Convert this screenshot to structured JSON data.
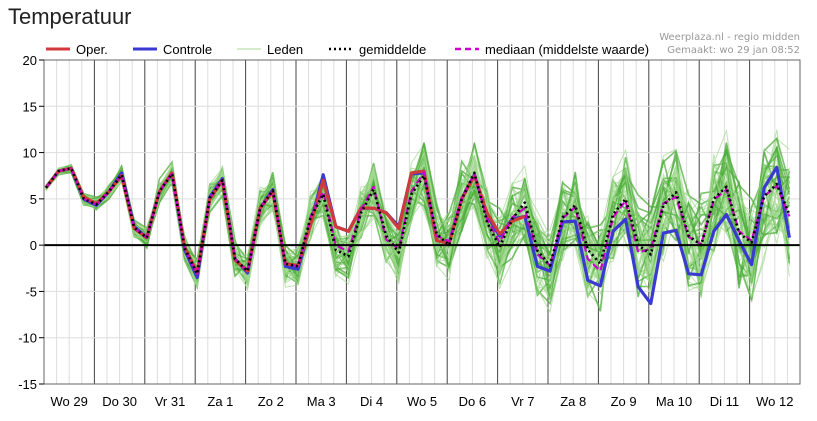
{
  "page": {
    "title": "Temperatuur"
  },
  "credits": {
    "line1": "Weerplaza.nl - regio midden",
    "line2": "Gemaakt: wo 29 jan 08:52"
  },
  "legend": [
    {
      "label": "Oper.",
      "color": "#d03a3a",
      "style": "solid-thick"
    },
    {
      "label": "Controle",
      "color": "#3a3ad0",
      "style": "solid-thick"
    },
    {
      "label": "Leden",
      "color": "#a8d898",
      "style": "solid-thin"
    },
    {
      "label": "gemiddelde",
      "color": "#000000",
      "style": "dotted"
    },
    {
      "label": "mediaan (middelste waarde)",
      "color": "#cc00cc",
      "style": "dashed"
    }
  ],
  "chart_data": {
    "type": "line",
    "ylim": [
      -15,
      20
    ],
    "yticks": [
      20,
      15,
      10,
      5,
      0,
      -5,
      -10,
      -15
    ],
    "grid": true,
    "legend_position": "top",
    "days": [
      "Wo 29",
      "Do 30",
      "Vr 31",
      "Za 1",
      "Zo 2",
      "Ma 3",
      "Di 4",
      "Wo 5",
      "Do 6",
      "Vr 7",
      "Za 8",
      "Zo 9",
      "Ma 10",
      "Di 11",
      "Wo 12"
    ],
    "steps_per_day": 4,
    "series": [
      {
        "name": "Oper.",
        "color": "#d03a3a",
        "values": [
          6.2,
          8.0,
          8.3,
          5.2,
          4.5,
          5.8,
          7.5,
          1.8,
          0.8,
          5.8,
          7.8,
          -0.2,
          -3.0,
          5.0,
          7.0,
          -1.6,
          -2.8,
          4.0,
          5.8,
          -2.0,
          -2.2,
          2.2,
          7.0,
          2.0,
          1.5,
          4.0,
          4.0,
          3.5,
          1.8,
          7.8,
          8.0,
          0.5,
          0.2,
          5.0,
          7.5,
          3.5,
          1.2,
          2.6,
          3.1
        ]
      },
      {
        "name": "Controle",
        "color": "#3a3ad0",
        "values": [
          6.2,
          8.0,
          8.3,
          5.0,
          4.3,
          5.8,
          7.8,
          2.0,
          0.8,
          5.8,
          7.8,
          -0.5,
          -3.5,
          5.2,
          7.2,
          -1.5,
          -3.0,
          4.0,
          6.0,
          -2.3,
          -2.6,
          2.3,
          7.6,
          2.0,
          1.5,
          4.0,
          4.0,
          3.5,
          2.0,
          7.7,
          7.8,
          0.5,
          0.3,
          5.0,
          7.6,
          3.2,
          1.0,
          2.8,
          3.1,
          -2.3,
          -2.8,
          2.5,
          2.6,
          -3.8,
          -4.4,
          1.5,
          2.8,
          -4.5,
          -6.3,
          1.3,
          1.6,
          -3.1,
          -3.2,
          1.5,
          3.3,
          0.5,
          -2.1,
          6.2,
          8.4,
          0.8
        ]
      },
      {
        "name": "gemiddelde",
        "color": "#000000",
        "values": [
          6.2,
          8.0,
          8.3,
          5.0,
          4.4,
          5.8,
          7.6,
          1.9,
          0.8,
          5.8,
          7.7,
          -0.3,
          -3.1,
          5.1,
          7.0,
          -1.5,
          -2.8,
          4.0,
          5.9,
          -2.0,
          -2.3,
          3.0,
          5.5,
          -0.5,
          -1.2,
          3.5,
          6.0,
          1.0,
          -0.8,
          5.5,
          7.5,
          1.2,
          0.0,
          5.0,
          7.8,
          2.5,
          -0.2,
          2.8,
          4.6,
          -0.6,
          -2.2,
          3.0,
          4.3,
          -0.5,
          -2.0,
          3.3,
          5.0,
          0.0,
          -1.0,
          4.3,
          5.7,
          1.0,
          0.0,
          5.0,
          6.3,
          1.3,
          0.3,
          5.3,
          6.6,
          3.3
        ]
      },
      {
        "name": "mediaan (middelste waarde)",
        "color": "#cc00cc",
        "values": [
          6.2,
          8.0,
          8.3,
          5.0,
          4.4,
          5.8,
          7.6,
          1.9,
          0.8,
          5.8,
          7.7,
          -0.3,
          -3.1,
          5.1,
          7.0,
          -1.5,
          -2.8,
          4.0,
          5.9,
          -2.0,
          -2.3,
          3.1,
          5.8,
          0.0,
          -0.7,
          3.8,
          6.3,
          0.6,
          -0.4,
          5.8,
          7.9,
          1.0,
          0.4,
          5.2,
          7.7,
          2.8,
          0.3,
          3.0,
          4.0,
          -1.0,
          -2.2,
          2.9,
          4.1,
          -1.5,
          -2.8,
          3.0,
          4.8,
          -0.8,
          -0.4,
          4.5,
          5.2,
          0.9,
          0.1,
          4.9,
          6.0,
          1.5,
          0.5,
          5.3,
          6.4,
          3.1
        ]
      }
    ],
    "members_count": 50
  }
}
